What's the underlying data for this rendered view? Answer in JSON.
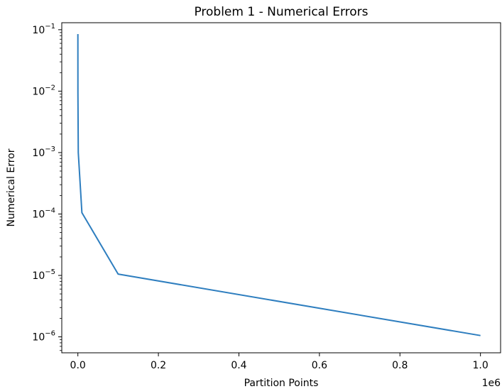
{
  "chart_data": {
    "type": "line",
    "title": "Problem 1 - Numerical Errors",
    "xlabel": "Partition Points",
    "ylabel": "Numerical Error",
    "x_offset_label": "1e6",
    "x_scale": "linear",
    "y_scale": "log",
    "xlim": [
      -40000,
      1050000
    ],
    "ylim": [
      5.5e-07,
      0.13
    ],
    "x_ticks": [
      0,
      200000,
      400000,
      600000,
      800000,
      1000000
    ],
    "x_tick_labels": [
      "0.0",
      "0.2",
      "0.4",
      "0.6",
      "0.8",
      "1.0"
    ],
    "y_ticks": [
      1e-06,
      1e-05,
      0.0001,
      0.001,
      0.01,
      0.1
    ],
    "y_tick_exponents": [
      "−6",
      "−5",
      "−4",
      "−3",
      "−2",
      "−1"
    ],
    "grid": false,
    "series": [
      {
        "color": "#2e7ebf",
        "x": [
          10,
          100,
          1000,
          10000,
          100000,
          1000000
        ],
        "y": [
          0.085,
          0.0095,
          0.001,
          0.000105,
          1.05e-05,
          1.05e-06
        ]
      }
    ]
  }
}
